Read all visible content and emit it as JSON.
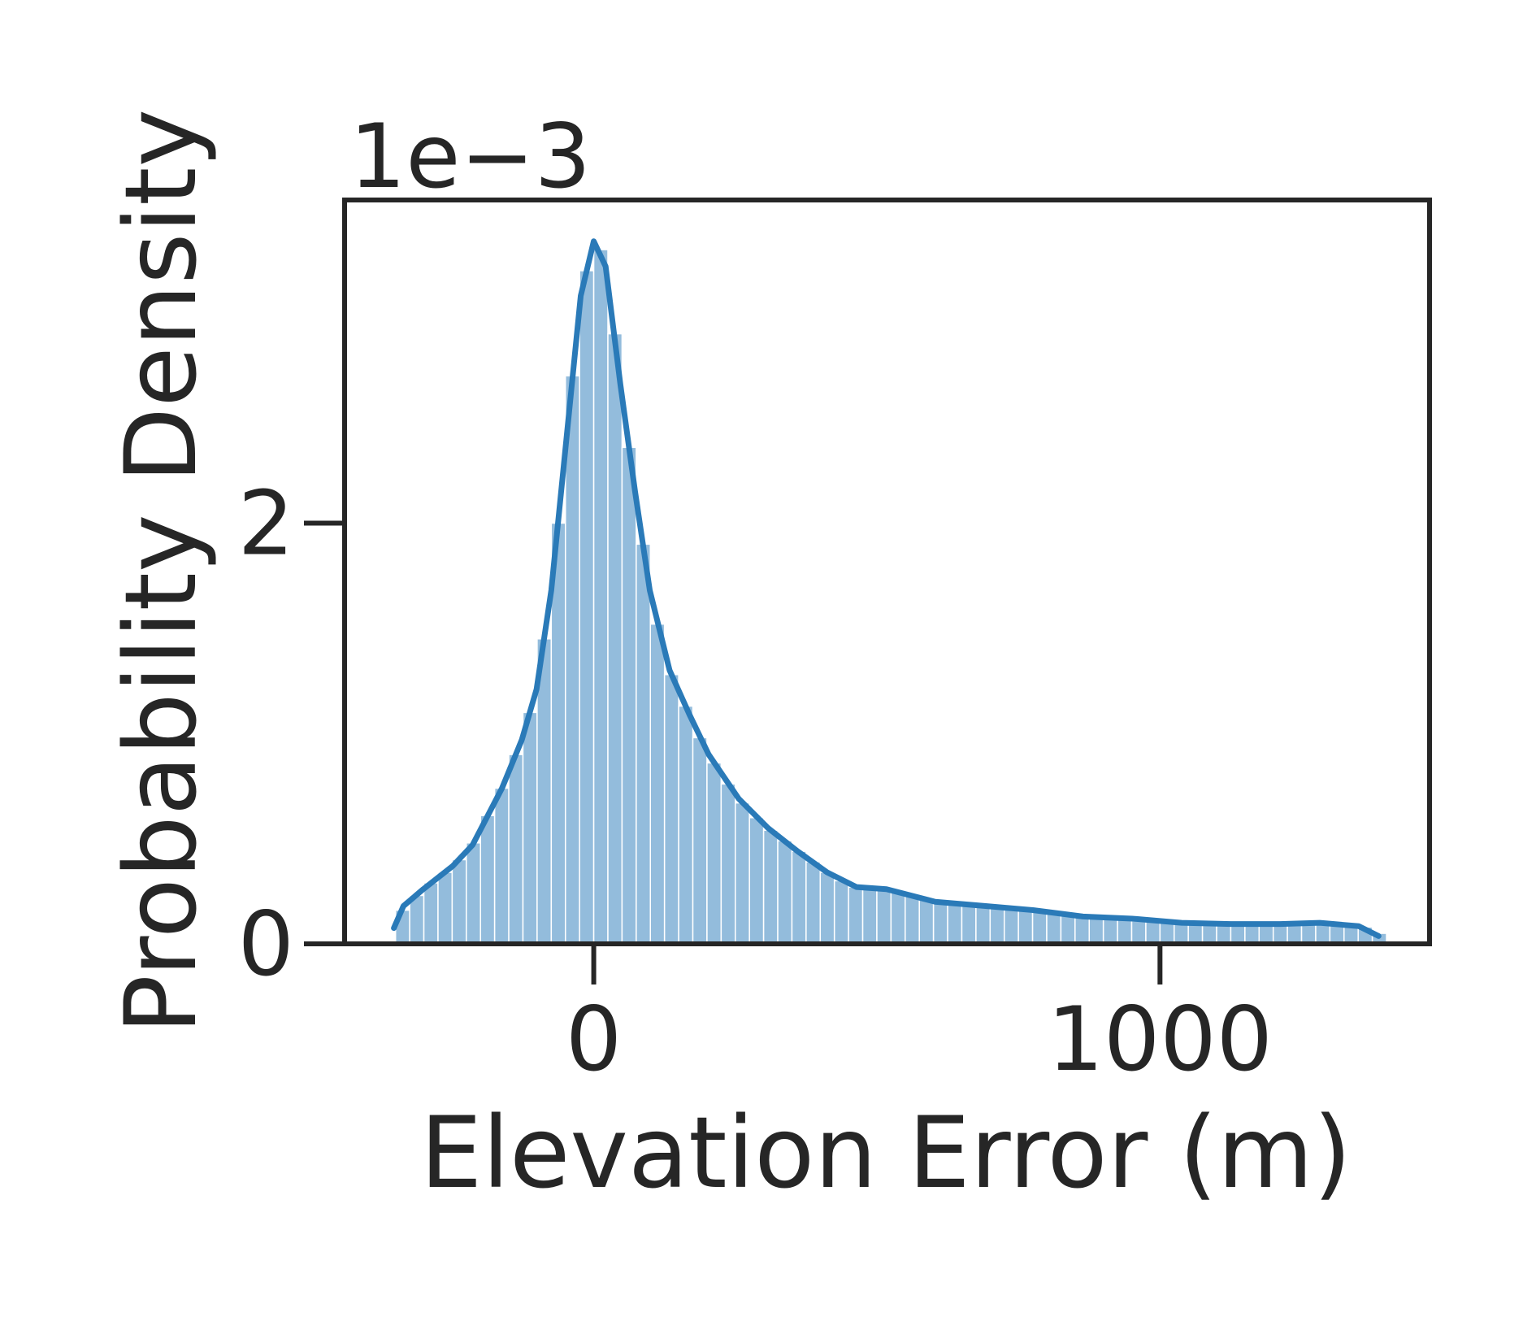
{
  "chart_data": {
    "type": "histogram",
    "xlabel": "Elevation Error (m)",
    "ylabel": "Probability Density",
    "y_offset_label": "1e−3",
    "bins": [
      -350,
      -325,
      -300,
      -275,
      -250,
      -225,
      -200,
      -175,
      -150,
      -125,
      -100,
      -75,
      -50,
      -25,
      0,
      25,
      50,
      75,
      100,
      125,
      150,
      175,
      200,
      225,
      250,
      275,
      300,
      325,
      350,
      375,
      400,
      425,
      450,
      475,
      500,
      525,
      550,
      575,
      600,
      625,
      650,
      675,
      700,
      725,
      750,
      775,
      800,
      825,
      850,
      875,
      900,
      925,
      950,
      975,
      1000,
      1025,
      1050,
      1075,
      1100,
      1125,
      1150,
      1175,
      1200,
      1225,
      1250,
      1275,
      1300,
      1325,
      1350,
      1375,
      1400
    ],
    "counts": [
      0.16,
      0.23,
      0.29,
      0.34,
      0.4,
      0.48,
      0.61,
      0.74,
      0.9,
      1.1,
      1.45,
      2.0,
      2.7,
      3.2,
      3.3,
      2.9,
      2.36,
      1.9,
      1.52,
      1.28,
      1.13,
      0.98,
      0.86,
      0.76,
      0.67,
      0.6,
      0.54,
      0.49,
      0.44,
      0.39,
      0.34,
      0.3,
      0.27,
      0.265,
      0.26,
      0.245,
      0.23,
      0.21,
      0.2,
      0.19,
      0.185,
      0.18,
      0.175,
      0.17,
      0.165,
      0.16,
      0.15,
      0.14,
      0.13,
      0.127,
      0.124,
      0.12,
      0.117,
      0.112,
      0.106,
      0.1,
      0.098,
      0.096,
      0.094,
      0.094,
      0.094,
      0.094,
      0.094,
      0.096,
      0.098,
      0.1,
      0.095,
      0.09,
      0.08,
      0.05
    ],
    "color": "#93bcdc",
    "kde": {
      "color": "#2a7ab8",
      "x": [
        -353,
        -336,
        -301,
        -249,
        -214,
        -162,
        -127,
        -101,
        -75,
        -49,
        -23,
        0,
        21,
        47,
        73,
        99,
        134,
        169,
        203,
        256,
        308,
        360,
        412,
        464,
        517,
        603,
        690,
        777,
        864,
        951,
        1038,
        1125,
        1212,
        1282,
        1351,
        1386
      ],
      "y": [
        0.075,
        0.18,
        0.26,
        0.37,
        0.47,
        0.74,
        0.97,
        1.21,
        1.68,
        2.38,
        3.08,
        3.34,
        3.22,
        2.66,
        2.15,
        1.68,
        1.3,
        1.09,
        0.9,
        0.69,
        0.55,
        0.44,
        0.34,
        0.27,
        0.26,
        0.2,
        0.18,
        0.16,
        0.13,
        0.12,
        0.1,
        0.094,
        0.094,
        0.1,
        0.084,
        0.037
      ]
    },
    "xlim": [
      -440,
      1476
    ],
    "ylim": [
      0,
      3.536
    ],
    "xticks": [
      0,
      1000
    ],
    "yticks": [
      0,
      2
    ]
  }
}
